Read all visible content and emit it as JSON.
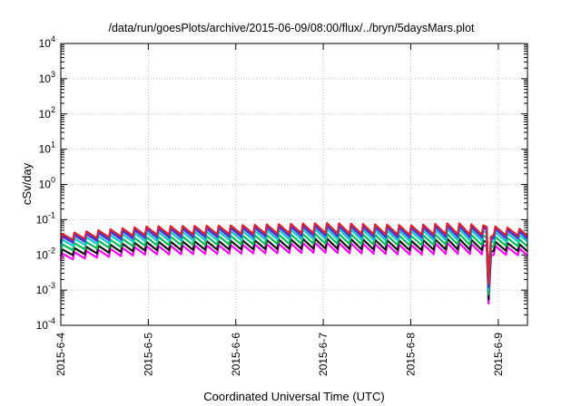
{
  "chart_data": {
    "type": "line",
    "title": "/data/run/goesPlots/archive/2015-06-09/08:00/flux/../bryn/5daysMars.plot",
    "xlabel": "Coordinated Universal Time (UTC)",
    "ylabel": "cSv/day",
    "yscale": "log",
    "ylim": [
      0.0001,
      10000
    ],
    "xlim": [
      "2015-06-04 00:00",
      "2015-06-09 08:00"
    ],
    "grid": true,
    "x_tick_labels": [
      "2015-6-4",
      "2015-6-5",
      "2015-6-6",
      "2015-6-7",
      "2015-6-8",
      "2015-6-9"
    ],
    "y_ticks": [
      {
        "base": "10",
        "exp": "-4"
      },
      {
        "base": "10",
        "exp": "-3"
      },
      {
        "base": "10",
        "exp": "-2"
      },
      {
        "base": "10",
        "exp": "-1"
      },
      {
        "base": "10",
        "exp": "0"
      },
      {
        "base": "10",
        "exp": "1"
      },
      {
        "base": "10",
        "exp": "2"
      },
      {
        "base": "10",
        "exp": "3"
      },
      {
        "base": "10",
        "exp": "4"
      }
    ],
    "series_colors": [
      "#ff00ff",
      "#111111",
      "#00bb55",
      "#00cccc",
      "#6633cc",
      "#2244ee",
      "#dd2233"
    ],
    "series_level_factors": [
      0.32,
      0.42,
      0.58,
      0.78,
      0.95,
      1.05,
      1.15
    ],
    "base_envelope": [
      {
        "time": "2015-06-04 00:00",
        "peak": 0.034,
        "trough": 0.022
      },
      {
        "time": "2015-06-05 00:00",
        "peak": 0.056,
        "trough": 0.032
      },
      {
        "time": "2015-06-06 00:00",
        "peak": 0.06,
        "trough": 0.034
      },
      {
        "time": "2015-06-07 00:00",
        "peak": 0.07,
        "trough": 0.036
      },
      {
        "time": "2015-06-08 00:00",
        "peak": 0.06,
        "trough": 0.032
      },
      {
        "time": "2015-06-08 12:00",
        "peak": 0.07,
        "trough": 0.034
      },
      {
        "time": "2015-06-09 08:00",
        "peak": 0.045,
        "trough": 0.03
      }
    ],
    "sawtooth_period_hours": 3.3,
    "dip": {
      "time": "2015-06-08 21:20",
      "min_value": 0.0015
    }
  }
}
